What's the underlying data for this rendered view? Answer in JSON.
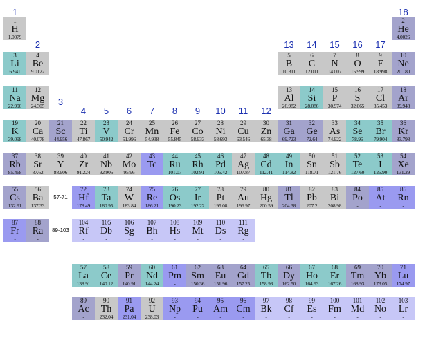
{
  "colors": {
    "alkali": "#a3a3cc",
    "alkaline": "#a3a3cc",
    "transition_metal": "#c8c8c8",
    "post_transition": "#c8c8c8",
    "metalloid": "#8ccaca",
    "nonmetal": "#c8c8c8",
    "halogen": "#c8c8c8",
    "noble_gas": "#a3a3cc",
    "teal": "#8ccaca",
    "blue": "#9a9af0",
    "lavender": "#c7c7f7",
    "gray": "#c8c8c8",
    "slate": "#a3a3cc",
    "group_number": "#1a2fb0"
  },
  "group_numbers": [
    "1",
    "2",
    "3",
    "4",
    "5",
    "6",
    "7",
    "8",
    "9",
    "10",
    "11",
    "12",
    "13",
    "14",
    "15",
    "16",
    "17",
    "18"
  ],
  "range_labels": [
    "57-71",
    "89-103"
  ],
  "elements": [
    {
      "z": "1",
      "sym": "H",
      "w": "1.0079",
      "g": 1,
      "r": 1,
      "c": "gray"
    },
    {
      "z": "2",
      "sym": "He",
      "w": "4.0026",
      "g": 18,
      "r": 1,
      "c": "slate"
    },
    {
      "z": "3",
      "sym": "Li",
      "w": "6.941",
      "g": 1,
      "r": 2,
      "c": "teal"
    },
    {
      "z": "4",
      "sym": "Be",
      "w": "9.0122",
      "g": 2,
      "r": 2,
      "c": "gray"
    },
    {
      "z": "5",
      "sym": "B",
      "w": "10.811",
      "g": 13,
      "r": 2,
      "c": "gray"
    },
    {
      "z": "6",
      "sym": "C",
      "w": "12.011",
      "g": 14,
      "r": 2,
      "c": "gray"
    },
    {
      "z": "7",
      "sym": "N",
      "w": "14.007",
      "g": 15,
      "r": 2,
      "c": "gray"
    },
    {
      "z": "8",
      "sym": "O",
      "w": "15.999",
      "g": 16,
      "r": 2,
      "c": "gray"
    },
    {
      "z": "9",
      "sym": "F",
      "w": "18.998",
      "g": 17,
      "r": 2,
      "c": "gray"
    },
    {
      "z": "10",
      "sym": "Ne",
      "w": "20.180",
      "g": 18,
      "r": 2,
      "c": "slate"
    },
    {
      "z": "11",
      "sym": "Na",
      "w": "22.990",
      "g": 1,
      "r": 3,
      "c": "teal"
    },
    {
      "z": "12",
      "sym": "Mg",
      "w": "24.305",
      "g": 2,
      "r": 3,
      "c": "gray"
    },
    {
      "z": "13",
      "sym": "Al",
      "w": "26.982",
      "g": 13,
      "r": 3,
      "c": "gray"
    },
    {
      "z": "14",
      "sym": "Si",
      "w": "28.086",
      "g": 14,
      "r": 3,
      "c": "teal"
    },
    {
      "z": "15",
      "sym": "P",
      "w": "30.974",
      "g": 15,
      "r": 3,
      "c": "gray"
    },
    {
      "z": "16",
      "sym": "S",
      "w": "32.065",
      "g": 16,
      "r": 3,
      "c": "gray"
    },
    {
      "z": "17",
      "sym": "Cl",
      "w": "35.453",
      "g": 17,
      "r": 3,
      "c": "gray"
    },
    {
      "z": "18",
      "sym": "Ar",
      "w": "39.948",
      "g": 18,
      "r": 3,
      "c": "slate"
    },
    {
      "z": "19",
      "sym": "K",
      "w": "39.098",
      "g": 1,
      "r": 4,
      "c": "teal"
    },
    {
      "z": "20",
      "sym": "Ca",
      "w": "40.078",
      "g": 2,
      "r": 4,
      "c": "gray"
    },
    {
      "z": "21",
      "sym": "Sc",
      "w": "44.956",
      "g": 3,
      "r": 4,
      "c": "slate"
    },
    {
      "z": "22",
      "sym": "Ti",
      "w": "47.867",
      "g": 4,
      "r": 4,
      "c": "gray"
    },
    {
      "z": "23",
      "sym": "V",
      "w": "50.942",
      "g": 5,
      "r": 4,
      "c": "teal"
    },
    {
      "z": "24",
      "sym": "Cr",
      "w": "51.996",
      "g": 6,
      "r": 4,
      "c": "gray"
    },
    {
      "z": "25",
      "sym": "Mn",
      "w": "54.938",
      "g": 7,
      "r": 4,
      "c": "gray"
    },
    {
      "z": "26",
      "sym": "Fe",
      "w": "55.845",
      "g": 8,
      "r": 4,
      "c": "gray"
    },
    {
      "z": "27",
      "sym": "Co",
      "w": "58.933",
      "g": 9,
      "r": 4,
      "c": "gray"
    },
    {
      "z": "28",
      "sym": "Ni",
      "w": "58.693",
      "g": 10,
      "r": 4,
      "c": "gray"
    },
    {
      "z": "29",
      "sym": "Cu",
      "w": "63.546",
      "g": 11,
      "r": 4,
      "c": "gray"
    },
    {
      "z": "30",
      "sym": "Zn",
      "w": "65.38",
      "g": 12,
      "r": 4,
      "c": "gray"
    },
    {
      "z": "31",
      "sym": "Ga",
      "w": "69.723",
      "g": 13,
      "r": 4,
      "c": "slate"
    },
    {
      "z": "32",
      "sym": "Ge",
      "w": "72.64",
      "g": 14,
      "r": 4,
      "c": "slate"
    },
    {
      "z": "33",
      "sym": "As",
      "w": "74.922",
      "g": 15,
      "r": 4,
      "c": "gray"
    },
    {
      "z": "34",
      "sym": "Se",
      "w": "78.96",
      "g": 16,
      "r": 4,
      "c": "teal"
    },
    {
      "z": "35",
      "sym": "Br",
      "w": "79.904",
      "g": 17,
      "r": 4,
      "c": "teal"
    },
    {
      "z": "36",
      "sym": "Kr",
      "w": "83.798",
      "g": 18,
      "r": 4,
      "c": "slate"
    },
    {
      "z": "37",
      "sym": "Rb",
      "w": "85.468",
      "g": 1,
      "r": 5,
      "c": "slate"
    },
    {
      "z": "38",
      "sym": "Sr",
      "w": "87.62",
      "g": 2,
      "r": 5,
      "c": "gray"
    },
    {
      "z": "39",
      "sym": "Y",
      "w": "88.906",
      "g": 3,
      "r": 5,
      "c": "gray"
    },
    {
      "z": "40",
      "sym": "Zr",
      "w": "91.224",
      "g": 4,
      "r": 5,
      "c": "gray"
    },
    {
      "z": "41",
      "sym": "Nb",
      "w": "92.906",
      "g": 5,
      "r": 5,
      "c": "gray"
    },
    {
      "z": "42",
      "sym": "Mo",
      "w": "95.96",
      "g": 6,
      "r": 5,
      "c": "gray"
    },
    {
      "z": "43",
      "sym": "Tc",
      "w": "-",
      "g": 7,
      "r": 5,
      "c": "blue"
    },
    {
      "z": "44",
      "sym": "Ru",
      "w": "101.07",
      "g": 8,
      "r": 5,
      "c": "teal"
    },
    {
      "z": "45",
      "sym": "Rh",
      "w": "102.91",
      "g": 9,
      "r": 5,
      "c": "teal"
    },
    {
      "z": "46",
      "sym": "Pd",
      "w": "106.42",
      "g": 10,
      "r": 5,
      "c": "teal"
    },
    {
      "z": "47",
      "sym": "Ag",
      "w": "107.87",
      "g": 11,
      "r": 5,
      "c": "gray"
    },
    {
      "z": "48",
      "sym": "Cd",
      "w": "112.41",
      "g": 12,
      "r": 5,
      "c": "teal"
    },
    {
      "z": "49",
      "sym": "In",
      "w": "114.82",
      "g": 13,
      "r": 5,
      "c": "teal"
    },
    {
      "z": "50",
      "sym": "Sn",
      "w": "118.71",
      "g": 14,
      "r": 5,
      "c": "gray"
    },
    {
      "z": "51",
      "sym": "Sb",
      "w": "121.76",
      "g": 15,
      "r": 5,
      "c": "gray"
    },
    {
      "z": "52",
      "sym": "Te",
      "w": "127.60",
      "g": 16,
      "r": 5,
      "c": "teal"
    },
    {
      "z": "53",
      "sym": "I",
      "w": "126.90",
      "g": 17,
      "r": 5,
      "c": "teal"
    },
    {
      "z": "54",
      "sym": "Xe",
      "w": "131.29",
      "g": 18,
      "r": 5,
      "c": "slate"
    },
    {
      "z": "55",
      "sym": "Cs",
      "w": "132.91",
      "g": 1,
      "r": 6,
      "c": "slate"
    },
    {
      "z": "56",
      "sym": "Ba",
      "w": "137.33",
      "g": 2,
      "r": 6,
      "c": "gray"
    },
    {
      "z": "72",
      "sym": "Hf",
      "w": "178.49",
      "g": 4,
      "r": 6,
      "c": "blue"
    },
    {
      "z": "73",
      "sym": "Ta",
      "w": "180.95",
      "g": 5,
      "r": 6,
      "c": "teal"
    },
    {
      "z": "74",
      "sym": "W",
      "w": "183.84",
      "g": 6,
      "r": 6,
      "c": "gray"
    },
    {
      "z": "75",
      "sym": "Re",
      "w": "186.21",
      "g": 7,
      "r": 6,
      "c": "blue"
    },
    {
      "z": "76",
      "sym": "Os",
      "w": "190.23",
      "g": 8,
      "r": 6,
      "c": "teal"
    },
    {
      "z": "77",
      "sym": "Ir",
      "w": "192.22",
      "g": 9,
      "r": 6,
      "c": "teal"
    },
    {
      "z": "78",
      "sym": "Pt",
      "w": "195.08",
      "g": 10,
      "r": 6,
      "c": "gray"
    },
    {
      "z": "79",
      "sym": "Au",
      "w": "196.97",
      "g": 11,
      "r": 6,
      "c": "gray"
    },
    {
      "z": "80",
      "sym": "Hg",
      "w": "200.59",
      "g": 12,
      "r": 6,
      "c": "gray"
    },
    {
      "z": "81",
      "sym": "Tl",
      "w": "204.38",
      "g": 13,
      "r": 6,
      "c": "slate"
    },
    {
      "z": "82",
      "sym": "Pb",
      "w": "207.2",
      "g": 14,
      "r": 6,
      "c": "gray"
    },
    {
      "z": "83",
      "sym": "Bi",
      "w": "208.98",
      "g": 15,
      "r": 6,
      "c": "gray"
    },
    {
      "z": "84",
      "sym": "Po",
      "w": "-",
      "g": 16,
      "r": 6,
      "c": "slate"
    },
    {
      "z": "85",
      "sym": "At",
      "w": "-",
      "g": 17,
      "r": 6,
      "c": "blue"
    },
    {
      "z": "86",
      "sym": "Rn",
      "w": "-",
      "g": 18,
      "r": 6,
      "c": "blue"
    },
    {
      "z": "87",
      "sym": "Fr",
      "w": "-",
      "g": 1,
      "r": 7,
      "c": "blue"
    },
    {
      "z": "88",
      "sym": "Ra",
      "w": "-",
      "g": 2,
      "r": 7,
      "c": "slate"
    },
    {
      "z": "104",
      "sym": "Rf",
      "w": "-",
      "g": 4,
      "r": 7,
      "c": "lavender"
    },
    {
      "z": "105",
      "sym": "Db",
      "w": "-",
      "g": 5,
      "r": 7,
      "c": "lavender"
    },
    {
      "z": "106",
      "sym": "Sg",
      "w": "-",
      "g": 6,
      "r": 7,
      "c": "lavender"
    },
    {
      "z": "107",
      "sym": "Bh",
      "w": "-",
      "g": 7,
      "r": 7,
      "c": "lavender"
    },
    {
      "z": "108",
      "sym": "Hs",
      "w": "-",
      "g": 8,
      "r": 7,
      "c": "lavender"
    },
    {
      "z": "109",
      "sym": "Mt",
      "w": "-",
      "g": 9,
      "r": 7,
      "c": "lavender"
    },
    {
      "z": "110",
      "sym": "Ds",
      "w": "-",
      "g": 10,
      "r": 7,
      "c": "lavender"
    },
    {
      "z": "111",
      "sym": "Rg",
      "w": "-",
      "g": 11,
      "r": 7,
      "c": "lavender"
    },
    {
      "z": "57",
      "sym": "La",
      "w": "138.91",
      "g": 4,
      "r": 9,
      "c": "teal"
    },
    {
      "z": "58",
      "sym": "Ce",
      "w": "140.12",
      "g": 5,
      "r": 9,
      "c": "teal"
    },
    {
      "z": "59",
      "sym": "Pr",
      "w": "140.91",
      "g": 6,
      "r": 9,
      "c": "slate"
    },
    {
      "z": "60",
      "sym": "Nd",
      "w": "144.24",
      "g": 7,
      "r": 9,
      "c": "teal"
    },
    {
      "z": "61",
      "sym": "Pm",
      "w": "-",
      "g": 8,
      "r": 9,
      "c": "blue"
    },
    {
      "z": "62",
      "sym": "Sm",
      "w": "150.36",
      "g": 9,
      "r": 9,
      "c": "slate"
    },
    {
      "z": "63",
      "sym": "Eu",
      "w": "151.96",
      "g": 10,
      "r": 9,
      "c": "slate"
    },
    {
      "z": "64",
      "sym": "Gd",
      "w": "157.25",
      "g": 11,
      "r": 9,
      "c": "slate"
    },
    {
      "z": "65",
      "sym": "Tb",
      "w": "158.93",
      "g": 12,
      "r": 9,
      "c": "teal"
    },
    {
      "z": "66",
      "sym": "Dy",
      "w": "162.50",
      "g": 13,
      "r": 9,
      "c": "slate"
    },
    {
      "z": "67",
      "sym": "Ho",
      "w": "164.93",
      "g": 14,
      "r": 9,
      "c": "teal"
    },
    {
      "z": "68",
      "sym": "Er",
      "w": "167.26",
      "g": 15,
      "r": 9,
      "c": "teal"
    },
    {
      "z": "69",
      "sym": "Tm",
      "w": "168.93",
      "g": 16,
      "r": 9,
      "c": "slate"
    },
    {
      "z": "70",
      "sym": "Yb",
      "w": "173.05",
      "g": 17,
      "r": 9,
      "c": "slate"
    },
    {
      "z": "71",
      "sym": "Lu",
      "w": "174.97",
      "g": 18,
      "r": 9,
      "c": "blue"
    },
    {
      "z": "89",
      "sym": "Ac",
      "w": "-",
      "g": 4,
      "r": 10,
      "c": "slate"
    },
    {
      "z": "90",
      "sym": "Th",
      "w": "232.04",
      "g": 5,
      "r": 10,
      "c": "gray"
    },
    {
      "z": "91",
      "sym": "Pa",
      "w": "231.04",
      "g": 6,
      "r": 10,
      "c": "blue"
    },
    {
      "z": "92",
      "sym": "U",
      "w": "238.03",
      "g": 7,
      "r": 10,
      "c": "gray"
    },
    {
      "z": "93",
      "sym": "Np",
      "w": "-",
      "g": 8,
      "r": 10,
      "c": "blue"
    },
    {
      "z": "94",
      "sym": "Pu",
      "w": "-",
      "g": 9,
      "r": 10,
      "c": "blue"
    },
    {
      "z": "95",
      "sym": "Am",
      "w": "-",
      "g": 10,
      "r": 10,
      "c": "blue"
    },
    {
      "z": "96",
      "sym": "Cm",
      "w": "-",
      "g": 11,
      "r": 10,
      "c": "blue"
    },
    {
      "z": "97",
      "sym": "Bk",
      "w": "-",
      "g": 12,
      "r": 10,
      "c": "lavender"
    },
    {
      "z": "98",
      "sym": "Cf",
      "w": "-",
      "g": 13,
      "r": 10,
      "c": "lavender"
    },
    {
      "z": "99",
      "sym": "Es",
      "w": "-",
      "g": 14,
      "r": 10,
      "c": "lavender"
    },
    {
      "z": "100",
      "sym": "Fm",
      "w": "-",
      "g": 15,
      "r": 10,
      "c": "lavender"
    },
    {
      "z": "101",
      "sym": "Md",
      "w": "-",
      "g": 16,
      "r": 10,
      "c": "lavender"
    },
    {
      "z": "102",
      "sym": "No",
      "w": "-",
      "g": 17,
      "r": 10,
      "c": "lavender"
    },
    {
      "z": "103",
      "sym": "Lr",
      "w": "-",
      "g": 18,
      "r": 10,
      "c": "lavender"
    }
  ]
}
